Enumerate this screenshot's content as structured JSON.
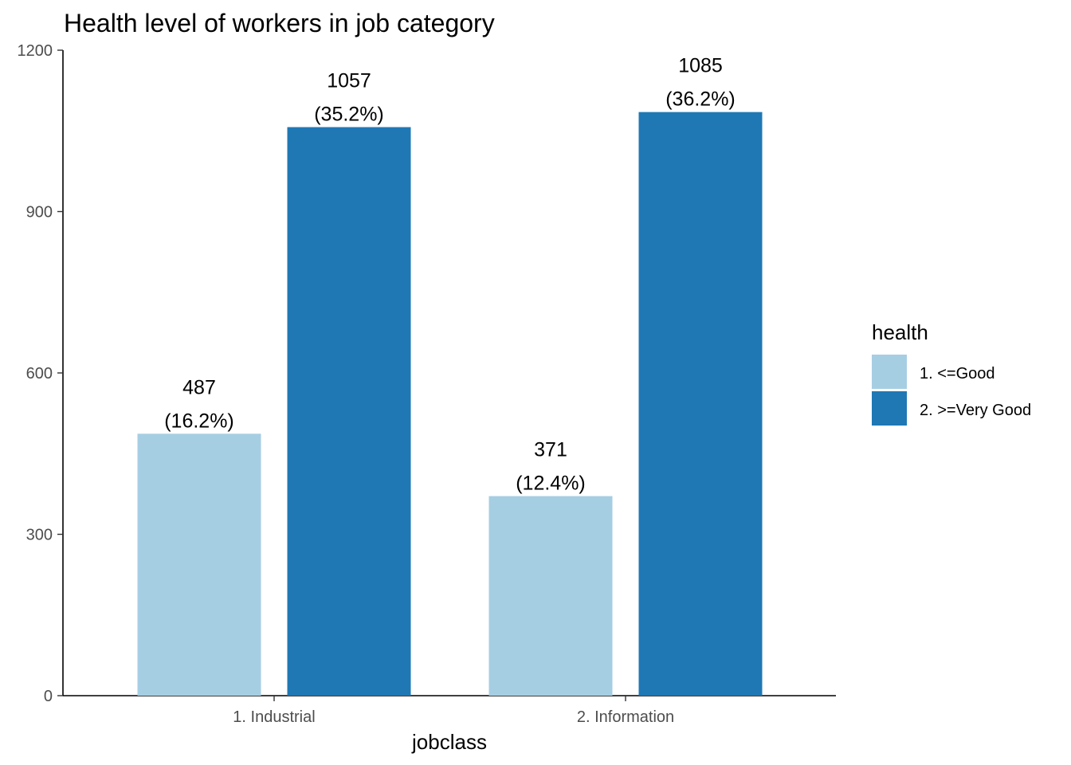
{
  "chart_data": {
    "type": "bar",
    "title": "Health level of workers in job category",
    "xlabel": "jobclass",
    "ylabel": "",
    "ylim": [
      0,
      1200
    ],
    "yticks": [
      0,
      300,
      600,
      900,
      1200
    ],
    "categories": [
      "1. Industrial",
      "2. Information"
    ],
    "legend": {
      "title": "health",
      "position": "right"
    },
    "grid": false,
    "series": [
      {
        "name": "1. <=Good",
        "color": "#a6cee3",
        "values": [
          487,
          371
        ],
        "labels": [
          "(16.2%)",
          "(12.4%)"
        ]
      },
      {
        "name": "2. >=Very Good",
        "color": "#1f78b4",
        "values": [
          1057,
          1085
        ],
        "labels": [
          "(35.2%)",
          "(36.2%)"
        ]
      }
    ]
  }
}
